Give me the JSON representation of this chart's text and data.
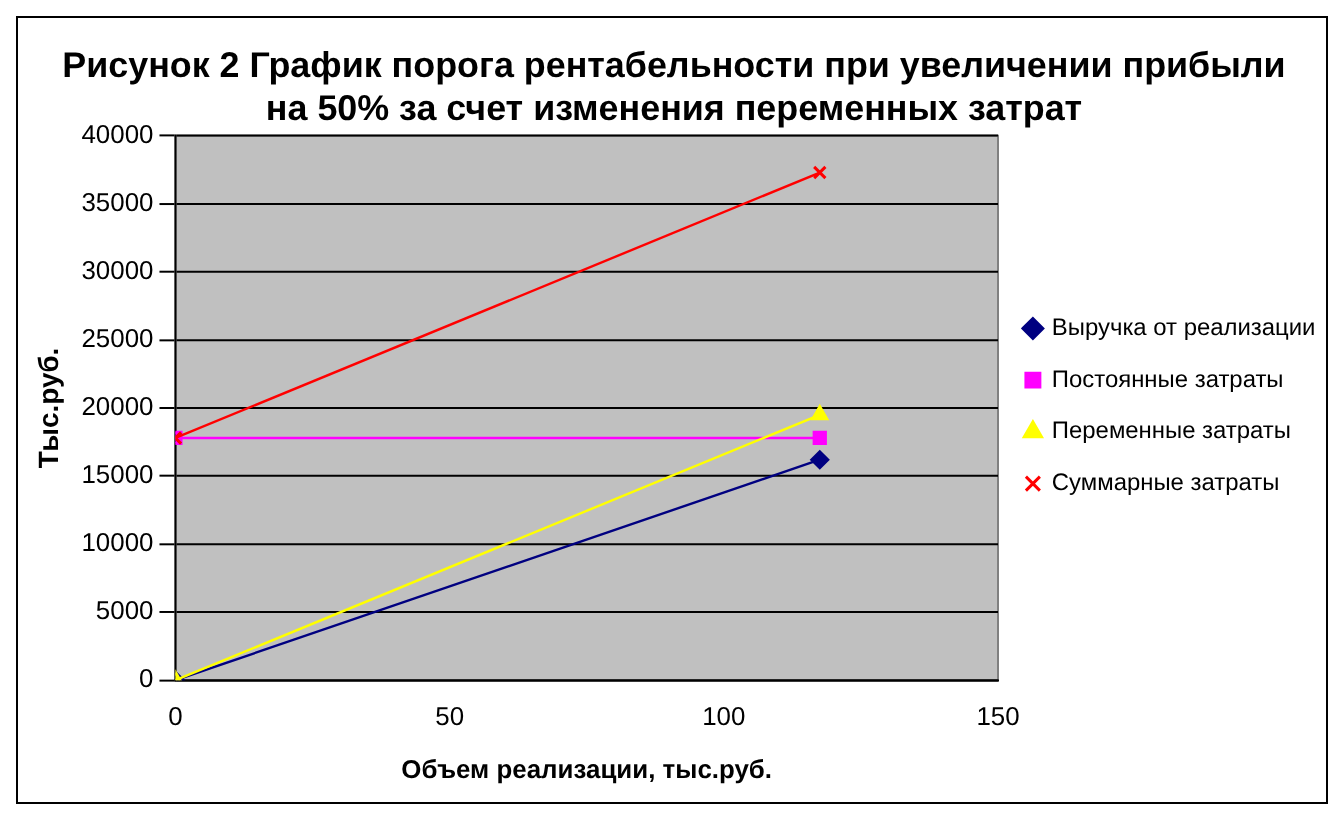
{
  "chart_data": {
    "type": "line",
    "title": "Рисунок 2 График порога рентабельности при увеличении прибыли на 50% за счет изменения переменных затрат",
    "xlabel": "Объем реализации, тыс.руб.",
    "ylabel": "Тыс.руб.",
    "x": [
      0,
      117.5
    ],
    "xlim": [
      0,
      150
    ],
    "xticks": [
      0,
      50,
      100,
      150
    ],
    "ylim": [
      0,
      40000
    ],
    "yticks": [
      0,
      5000,
      10000,
      15000,
      20000,
      25000,
      30000,
      35000,
      40000
    ],
    "grid": "y",
    "legend": "right",
    "line_style": "solid",
    "series": [
      {
        "name": "Выручка от реализации",
        "color": "#000080",
        "marker": "diamond",
        "values": [
          0,
          16200
        ]
      },
      {
        "name": "Постоянные затраты",
        "color": "#ff00ff",
        "marker": "square",
        "values": [
          17800,
          17800
        ]
      },
      {
        "name": "Переменные затраты",
        "color": "#ffff00",
        "marker": "triangle",
        "values": [
          0,
          19500
        ]
      },
      {
        "name": "Суммарные затраты",
        "color": "#ff0000",
        "marker": "cross",
        "values": [
          17800,
          37300
        ]
      }
    ]
  }
}
